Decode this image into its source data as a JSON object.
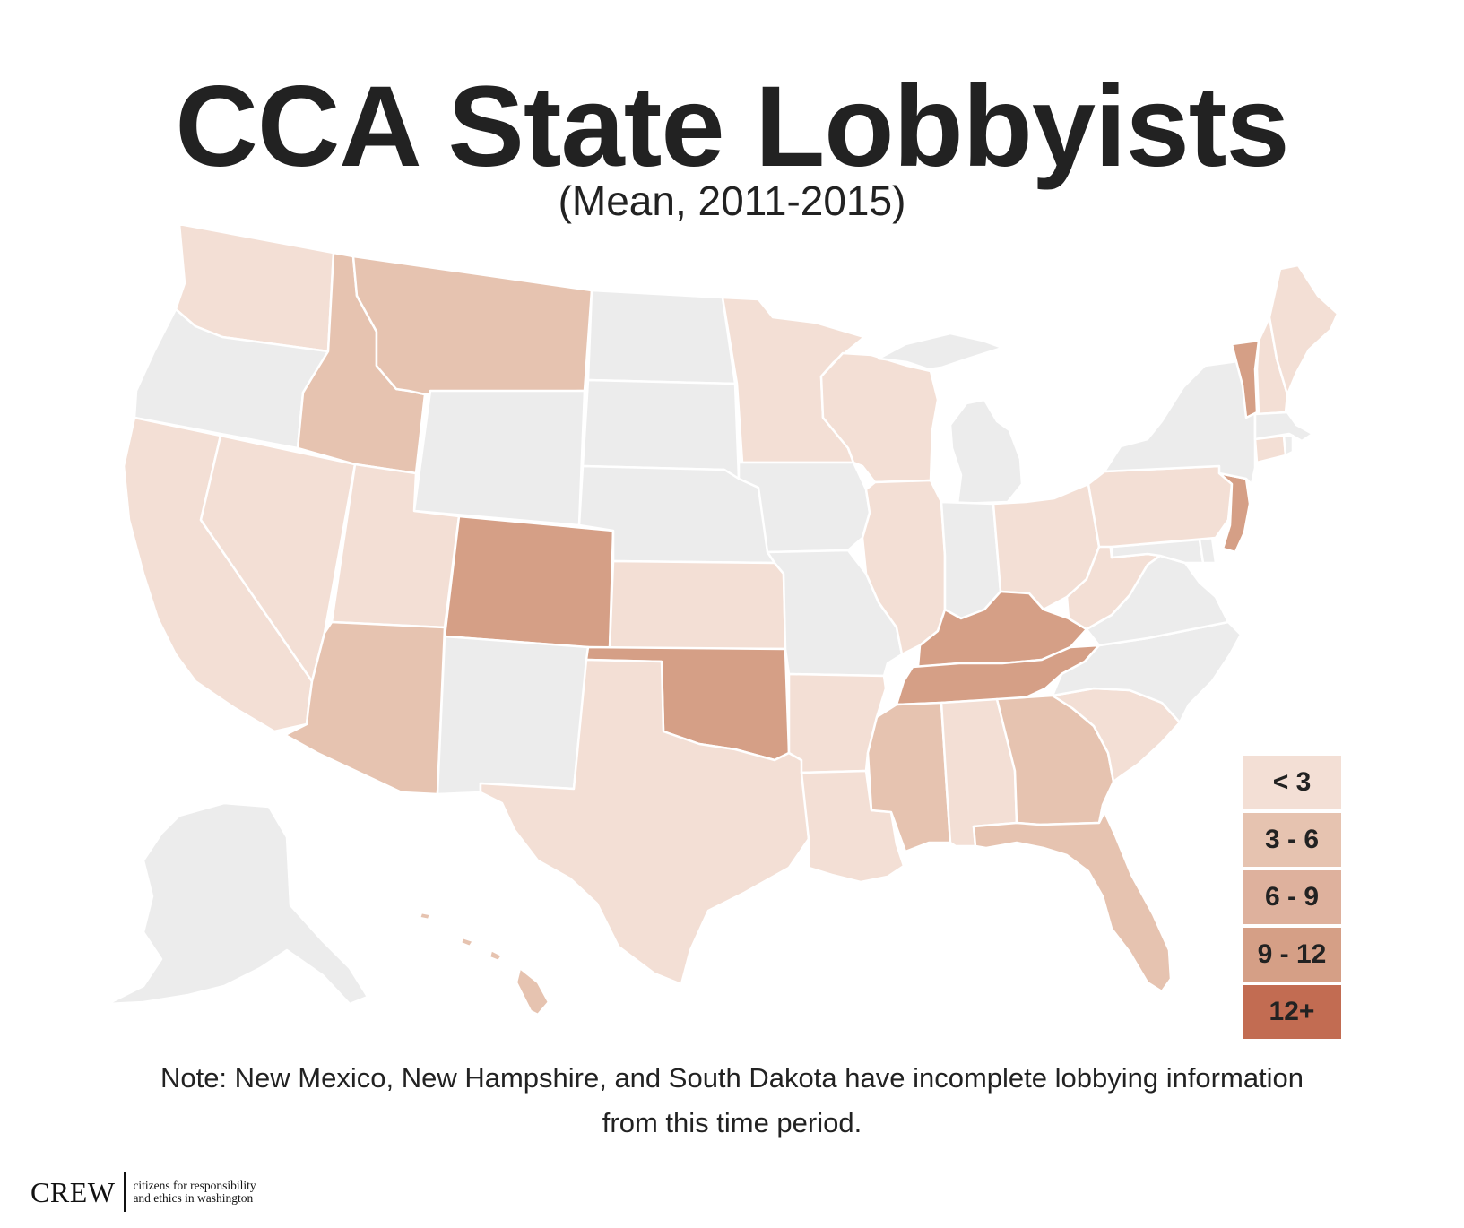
{
  "title": "CCA State Lobbyists",
  "subtitle": "(Mean, 2011-2015)",
  "colors": {
    "no_data": "#ececec",
    "lt3": "#f3dfd5",
    "3_6": "#e6c3b0",
    "6_9": "#deb19d",
    "9_12": "#d59f86",
    "12_plus": "#c26c52"
  },
  "legend": [
    {
      "label": "< 3",
      "color": "#f3dfd5"
    },
    {
      "label": "3 - 6",
      "color": "#e6c3b0"
    },
    {
      "label": "6 - 9",
      "color": "#deb19d"
    },
    {
      "label": "9 - 12",
      "color": "#d59f86"
    },
    {
      "label": "12+",
      "color": "#c26c52"
    }
  ],
  "map": {
    "states": [
      {
        "name": "Washington",
        "bin": "lt3"
      },
      {
        "name": "Oregon",
        "bin": "no_data"
      },
      {
        "name": "California",
        "bin": "lt3"
      },
      {
        "name": "Nevada",
        "bin": "lt3"
      },
      {
        "name": "Idaho",
        "bin": "3_6"
      },
      {
        "name": "Montana",
        "bin": "3_6"
      },
      {
        "name": "Wyoming",
        "bin": "no_data"
      },
      {
        "name": "Utah",
        "bin": "lt3"
      },
      {
        "name": "Arizona",
        "bin": "3_6"
      },
      {
        "name": "Colorado",
        "bin": "9_12"
      },
      {
        "name": "New Mexico",
        "bin": "no_data"
      },
      {
        "name": "North Dakota",
        "bin": "no_data"
      },
      {
        "name": "South Dakota",
        "bin": "no_data"
      },
      {
        "name": "Nebraska",
        "bin": "no_data"
      },
      {
        "name": "Kansas",
        "bin": "lt3"
      },
      {
        "name": "Oklahoma",
        "bin": "9_12"
      },
      {
        "name": "Texas",
        "bin": "lt3"
      },
      {
        "name": "Minnesota",
        "bin": "lt3"
      },
      {
        "name": "Iowa",
        "bin": "no_data"
      },
      {
        "name": "Missouri",
        "bin": "no_data"
      },
      {
        "name": "Arkansas",
        "bin": "lt3"
      },
      {
        "name": "Louisiana",
        "bin": "lt3"
      },
      {
        "name": "Wisconsin",
        "bin": "lt3"
      },
      {
        "name": "Illinois",
        "bin": "lt3"
      },
      {
        "name": "Michigan",
        "bin": "no_data"
      },
      {
        "name": "Indiana",
        "bin": "no_data"
      },
      {
        "name": "Ohio",
        "bin": "lt3"
      },
      {
        "name": "Kentucky",
        "bin": "9_12"
      },
      {
        "name": "Tennessee",
        "bin": "9_12"
      },
      {
        "name": "Mississippi",
        "bin": "3_6"
      },
      {
        "name": "Alabama",
        "bin": "lt3"
      },
      {
        "name": "Georgia",
        "bin": "3_6"
      },
      {
        "name": "Florida",
        "bin": "3_6"
      },
      {
        "name": "South Carolina",
        "bin": "lt3"
      },
      {
        "name": "North Carolina",
        "bin": "no_data"
      },
      {
        "name": "Virginia",
        "bin": "no_data"
      },
      {
        "name": "West Virginia",
        "bin": "lt3"
      },
      {
        "name": "Pennsylvania",
        "bin": "lt3"
      },
      {
        "name": "New York",
        "bin": "no_data"
      },
      {
        "name": "Vermont",
        "bin": "9_12"
      },
      {
        "name": "New Hampshire",
        "bin": "lt3"
      },
      {
        "name": "Maine",
        "bin": "lt3"
      },
      {
        "name": "Massachusetts",
        "bin": "no_data"
      },
      {
        "name": "Connecticut",
        "bin": "lt3"
      },
      {
        "name": "Rhode Island",
        "bin": "no_data"
      },
      {
        "name": "New Jersey",
        "bin": "9_12"
      },
      {
        "name": "Delaware",
        "bin": "no_data"
      },
      {
        "name": "Maryland",
        "bin": "no_data"
      },
      {
        "name": "Alaska",
        "bin": "no_data"
      },
      {
        "name": "Hawaii",
        "bin": "3_6"
      }
    ]
  },
  "note": "Note: New Mexico, New Hampshire, and South Dakota have incomplete lobbying information from this time period.",
  "footer": {
    "logo_text": "CREW",
    "tagline_line1": "citizens for responsibility",
    "tagline_line2": "and ethics in washington"
  }
}
